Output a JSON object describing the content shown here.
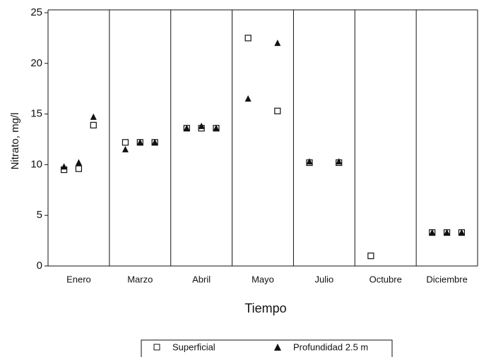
{
  "chart_data": {
    "type": "scatter",
    "ylabel": "Nitrato, mg/l",
    "xlabel": "Tiempo",
    "categories": [
      "Enero",
      "Marzo",
      "Abril",
      "Mayo",
      "Julio",
      "Octubre",
      "Diciembre"
    ],
    "series": [
      {
        "name": "Superficial",
        "color": "#111111",
        "marker": "square",
        "values": [
          [
            9.5,
            9.6,
            13.9
          ],
          [
            12.2,
            12.2,
            12.2
          ],
          [
            13.6,
            13.6,
            13.6
          ],
          [
            22.5,
            null,
            15.3
          ],
          [
            10.2,
            null,
            10.2
          ],
          [
            1.0,
            null,
            null
          ],
          [
            3.3,
            3.3,
            3.3
          ]
        ]
      },
      {
        "name": "Profundidad 2.5 m",
        "color": "#111111",
        "marker": "triangle",
        "values": [
          [
            9.8,
            10.2,
            14.7
          ],
          [
            11.5,
            12.2,
            12.2
          ],
          [
            13.6,
            13.8,
            13.6
          ],
          [
            16.5,
            null,
            22.0
          ],
          [
            10.3,
            null,
            10.3
          ],
          [
            null,
            null,
            null
          ],
          [
            3.3,
            3.3,
            3.3
          ]
        ]
      }
    ],
    "ylim": [
      0,
      25
    ],
    "yticks": [
      0,
      5,
      10,
      15,
      20,
      25
    ]
  }
}
